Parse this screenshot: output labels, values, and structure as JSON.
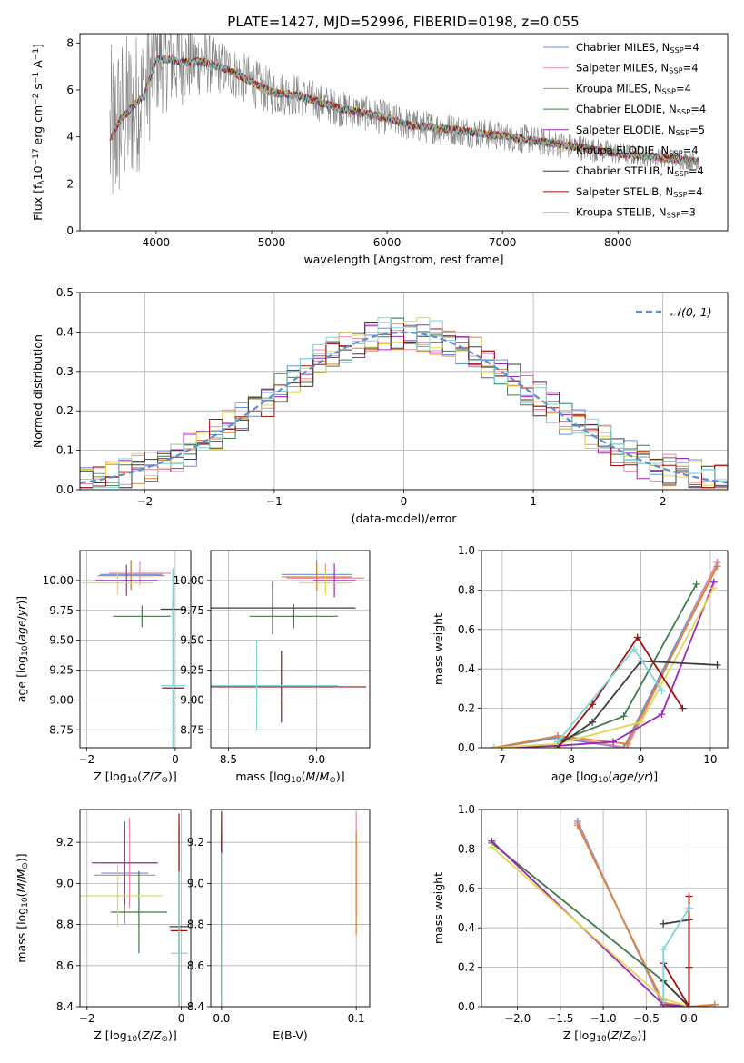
{
  "figure": {
    "title": "PLATE=1427, MJD=52996, FIBERID=0198, z=0.055"
  },
  "colors": {
    "series": [
      "#6a8fd8",
      "#e88aa6",
      "#d9843a",
      "#3f7a4a",
      "#9b28b8",
      "#e2d84e",
      "#3d3d3d",
      "#a01010",
      "#7fd6d8"
    ],
    "data": "#7f7f7f",
    "normal": "#5b8fd0",
    "grid": "#b0b0b0"
  },
  "series_labels": [
    "Chabrier MILES, N<sub>SSP</sub>=4",
    "Salpeter MILES, N<sub>SSP</sub>=4",
    "Kroupa MILES, N<sub>SSP</sub>=4",
    "Chabrier ELODIE, N<sub>SSP</sub>=4",
    "Salpeter ELODIE, N<sub>SSP</sub>=5",
    "Kroupa ELODIE, N<sub>SSP</sub>=4",
    "Chabrier STELIB, N<sub>SSP</sub>=4",
    "Salpeter STELIB, N<sub>SSP</sub>=4",
    "Kroupa STELIB, N<sub>SSP</sub>=3"
  ],
  "chart_data": [
    {
      "type": "line",
      "name": "spectrum",
      "xlabel": "wavelength [Angstrom, rest frame]",
      "ylabel": "Flux [f<sub>λ</sub>10<sup>−17</sup> erg cm<sup>−2</sup> s<sup>−1</sup> A<sup>−1</sup>]",
      "xlim": [
        3340,
        8950
      ],
      "ylim": [
        0,
        8.4
      ],
      "xticks": [
        4000,
        5000,
        6000,
        7000,
        8000
      ],
      "yticks": [
        0,
        2,
        4,
        6,
        8
      ],
      "legend": "top-right",
      "model_continuum": [
        [
          3600,
          3.9
        ],
        [
          3700,
          4.8
        ],
        [
          3800,
          5.3
        ],
        [
          3900,
          5.8
        ],
        [
          4000,
          7.3
        ],
        [
          4100,
          7.3
        ],
        [
          4200,
          7.2
        ],
        [
          4400,
          7.2
        ],
        [
          4600,
          6.9
        ],
        [
          4800,
          6.4
        ],
        [
          5000,
          5.9
        ],
        [
          5200,
          5.8
        ],
        [
          5400,
          5.5
        ],
        [
          5600,
          5.2
        ],
        [
          5800,
          5.0
        ],
        [
          6000,
          4.8
        ],
        [
          6200,
          4.5
        ],
        [
          6400,
          4.4
        ],
        [
          6600,
          4.3
        ],
        [
          6800,
          4.15
        ],
        [
          7000,
          4.05
        ],
        [
          7200,
          3.9
        ],
        [
          7400,
          3.75
        ],
        [
          7600,
          3.6
        ],
        [
          7800,
          3.45
        ],
        [
          8000,
          3.3
        ],
        [
          8200,
          3.2
        ],
        [
          8400,
          3.1
        ],
        [
          8600,
          3.0
        ],
        [
          8700,
          2.95
        ]
      ],
      "data_noise": [
        [
          3600,
          4.0
        ],
        [
          4000,
          2.5
        ],
        [
          4500,
          1.2
        ],
        [
          5500,
          0.8
        ],
        [
          6500,
          0.7
        ],
        [
          7500,
          0.6
        ],
        [
          8200,
          0.45
        ],
        [
          8700,
          0.4
        ]
      ]
    },
    {
      "type": "bar",
      "name": "residuals",
      "xlabel": "(data-model)/error",
      "ylabel": "Normed distribution",
      "xlim": [
        -2.5,
        2.5
      ],
      "ylim": [
        0,
        0.5
      ],
      "xticks": [
        -2,
        -1,
        0,
        1,
        2
      ],
      "yticks": [
        0.0,
        0.1,
        0.2,
        0.3,
        0.4,
        0.5
      ],
      "bin_width": 0.1,
      "normal_label": "𝒩(0, 1)",
      "legend": "top-right"
    },
    {
      "type": "scatter",
      "name": "age_vs_Z",
      "xlabel": "Z [log<sub>10</sub>(<i>Z</i>/<i>Z</i><sub>⊙</sub>)]",
      "ylabel": "age  [log<sub>10</sub>(<i>age</i>/<i>yr</i>)]",
      "xlim": [
        -2.15,
        0.35
      ],
      "ylim": [
        8.6,
        10.25
      ],
      "xticks": [
        -2,
        0
      ],
      "yticks": [
        8.75,
        9.0,
        9.25,
        9.5,
        9.75,
        10.0
      ],
      "points": [
        {
          "s": 0,
          "x": -1.0,
          "y": 10.05,
          "xerr": 0.7,
          "yerr": 0.12
        },
        {
          "s": 1,
          "x": -0.8,
          "y": 10.06,
          "xerr": 0.7,
          "yerr": 0.1
        },
        {
          "s": 2,
          "x": -1.0,
          "y": 10.04,
          "xerr": 0.75,
          "yerr": 0.12
        },
        {
          "s": 3,
          "x": -0.75,
          "y": 9.7,
          "xerr": 0.65,
          "yerr": 0.09
        },
        {
          "s": 4,
          "x": -1.1,
          "y": 10.0,
          "xerr": 0.7,
          "yerr": 0.13
        },
        {
          "s": 5,
          "x": -1.3,
          "y": 9.98,
          "xerr": 0.8,
          "yerr": 0.1
        },
        {
          "s": 6,
          "x": -0.05,
          "y": 9.76,
          "xerr": 0.28,
          "yerr": 0.08
        },
        {
          "s": 7,
          "x": -0.05,
          "y": 9.1,
          "xerr": 0.25,
          "yerr": 1.0
        },
        {
          "s": 8,
          "x": -0.05,
          "y": 9.12,
          "xerr": 0.28,
          "yerr": 0.98
        }
      ]
    },
    {
      "type": "scatter",
      "name": "age_vs_mass",
      "xlabel": "mass [log<sub>10</sub>(<i>M</i>/<i>M</i><sub>⊙</sub>)]",
      "ylabel": "",
      "xlim": [
        8.4,
        9.3
      ],
      "ylim": [
        8.6,
        10.25
      ],
      "xticks": [
        8.5,
        9.0
      ],
      "yticks": [
        8.75,
        9.0,
        9.25,
        9.5,
        9.75,
        10.0
      ],
      "points": [
        {
          "s": 0,
          "x": 9.0,
          "y": 10.05,
          "xerr": 0.2,
          "yerr": 0.12
        },
        {
          "s": 1,
          "x": 9.05,
          "y": 10.02,
          "xerr": 0.22,
          "yerr": 0.12
        },
        {
          "s": 2,
          "x": 9.0,
          "y": 10.03,
          "xerr": 0.2,
          "yerr": 0.12
        },
        {
          "s": 3,
          "x": 8.87,
          "y": 9.7,
          "xerr": 0.25,
          "yerr": 0.1
        },
        {
          "s": 4,
          "x": 9.1,
          "y": 10.0,
          "xerr": 0.12,
          "yerr": 0.14
        },
        {
          "s": 5,
          "x": 9.05,
          "y": 9.98,
          "xerr": 0.15,
          "yerr": 0.1
        },
        {
          "s": 6,
          "x": 8.75,
          "y": 9.77,
          "xerr": 0.47,
          "yerr": 0.22
        },
        {
          "s": 7,
          "x": 8.8,
          "y": 9.11,
          "xerr": 0.48,
          "yerr": 0.3
        },
        {
          "s": 8,
          "x": 8.66,
          "y": 9.12,
          "xerr": 0.46,
          "yerr": 0.38
        }
      ]
    },
    {
      "type": "line",
      "name": "massweight_vs_age",
      "xlabel": "age  [log<sub>10</sub>(<i>age</i>/<i>yr</i>)]",
      "ylabel": "mass weight",
      "xlim": [
        6.7,
        10.25
      ],
      "ylim": [
        0,
        1.0
      ],
      "xticks": [
        7,
        8,
        9,
        10
      ],
      "yticks": [
        0.0,
        0.2,
        0.4,
        0.6,
        0.8,
        1.0
      ],
      "series": [
        {
          "s": 0,
          "points": [
            [
              6.88,
              0.0
            ],
            [
              7.8,
              0.05
            ],
            [
              8.75,
              0.0
            ],
            [
              10.1,
              0.94
            ]
          ]
        },
        {
          "s": 1,
          "points": [
            [
              6.88,
              0.0
            ],
            [
              7.8,
              0.06
            ],
            [
              8.8,
              0.0
            ],
            [
              10.1,
              0.94
            ]
          ]
        },
        {
          "s": 2,
          "points": [
            [
              6.88,
              0.0
            ],
            [
              7.8,
              0.06
            ],
            [
              8.8,
              0.02
            ],
            [
              10.1,
              0.92
            ]
          ]
        },
        {
          "s": 3,
          "points": [
            [
              7.8,
              0.03
            ],
            [
              8.75,
              0.16
            ],
            [
              9.8,
              0.83
            ]
          ]
        },
        {
          "s": 4,
          "points": [
            [
              6.88,
              0.0
            ],
            [
              7.8,
              0.01
            ],
            [
              8.6,
              0.03
            ],
            [
              9.3,
              0.17
            ],
            [
              10.05,
              0.84
            ]
          ]
        },
        {
          "s": 5,
          "points": [
            [
              6.88,
              0.0
            ],
            [
              7.8,
              0.02
            ],
            [
              9.0,
              0.13
            ],
            [
              10.05,
              0.81
            ]
          ]
        },
        {
          "s": 6,
          "points": [
            [
              7.8,
              0.01
            ],
            [
              8.3,
              0.13
            ],
            [
              9.0,
              0.44
            ],
            [
              10.1,
              0.42
            ]
          ]
        },
        {
          "s": 7,
          "points": [
            [
              7.8,
              0.0
            ],
            [
              8.3,
              0.22
            ],
            [
              8.95,
              0.56
            ],
            [
              9.6,
              0.2
            ]
          ]
        },
        {
          "s": 8,
          "points": [
            [
              7.8,
              0.03
            ],
            [
              8.9,
              0.5
            ],
            [
              9.3,
              0.29
            ]
          ]
        }
      ]
    },
    {
      "type": "scatter",
      "name": "mass_vs_Z",
      "xlabel": "Z [log<sub>10</sub>(<i>Z</i>/<i>Z</i><sub>⊙</sub>)]",
      "ylabel": "mass [log<sub>10</sub>(<i>M</i>/<i>M</i><sub>⊙</sub>)]",
      "xlim": [
        -2.15,
        0.2
      ],
      "ylim": [
        8.4,
        9.36
      ],
      "xticks": [
        -2,
        0
      ],
      "yticks": [
        8.4,
        8.6,
        8.8,
        9.0,
        9.2
      ],
      "points": [
        {
          "s": 0,
          "x": -1.2,
          "y": 9.05,
          "xerr": 0.5,
          "yerr": 0.25
        },
        {
          "s": 1,
          "x": -1.1,
          "y": 9.1,
          "xerr": 0.6,
          "yerr": 0.22
        },
        {
          "s": 2,
          "x": -1.2,
          "y": 9.04,
          "xerr": 0.65,
          "yerr": 0.2
        },
        {
          "s": 3,
          "x": -0.9,
          "y": 8.86,
          "xerr": 0.6,
          "yerr": 0.2
        },
        {
          "s": 4,
          "x": -1.2,
          "y": 9.1,
          "xerr": 0.7,
          "yerr": 0.2
        },
        {
          "s": 5,
          "x": -1.35,
          "y": 8.94,
          "xerr": 0.95,
          "yerr": 0.15
        },
        {
          "s": 6,
          "x": -0.05,
          "y": 8.79,
          "xerr": 0.2,
          "yerr": 0.5
        },
        {
          "s": 7,
          "x": -0.05,
          "y": 8.77,
          "xerr": 0.18,
          "yerr": 0.57
        },
        {
          "s": 8,
          "x": -0.05,
          "y": 8.66,
          "xerr": 0.18,
          "yerr": 0.4
        }
      ]
    },
    {
      "type": "scatter",
      "name": "mass_vs_ebv",
      "xlabel": "E(B-V)",
      "ylabel": "",
      "xlim": [
        -0.008,
        0.11
      ],
      "ylim": [
        8.4,
        9.36
      ],
      "xticks": [
        0.0,
        0.1
      ],
      "yticks": [
        8.4,
        8.6,
        8.8,
        9.0,
        9.2
      ],
      "points": [
        {
          "s": 0,
          "x": 0.0,
          "y": 8.9,
          "xerr": 0,
          "yerr": 0.35
        },
        {
          "s": 1,
          "x": 0.1,
          "y": 9.1,
          "xerr": 0,
          "yerr": 0.25
        },
        {
          "s": 2,
          "x": 0.1,
          "y": 9.0,
          "xerr": 0,
          "yerr": 0.25
        },
        {
          "s": 3,
          "x": 0.0,
          "y": 8.85,
          "xerr": 0,
          "yerr": 0.4
        },
        {
          "s": 4,
          "x": 0.0,
          "y": 9.0,
          "xerr": 0,
          "yerr": 0.3
        },
        {
          "s": 5,
          "x": 0.0,
          "y": 8.9,
          "xerr": 0,
          "yerr": 0.4
        },
        {
          "s": 6,
          "x": 0.0,
          "y": 8.8,
          "xerr": 0,
          "yerr": 0.45
        },
        {
          "s": 7,
          "x": 0.0,
          "y": 8.85,
          "xerr": 0,
          "yerr": 0.5
        },
        {
          "s": 8,
          "x": 0.0,
          "y": 8.75,
          "xerr": 0,
          "yerr": 0.4
        }
      ]
    },
    {
      "type": "line",
      "name": "massweight_vs_Z",
      "xlabel": "Z [log<sub>10</sub>(<i>Z</i>/<i>Z</i><sub>⊙</sub>)]",
      "ylabel": "mass weight",
      "xlim": [
        -2.42,
        0.45
      ],
      "ylim": [
        0,
        1.0
      ],
      "xticks": [
        -2.0,
        -1.5,
        -1.0,
        -0.5,
        0.0
      ],
      "yticks": [
        0.0,
        0.2,
        0.4,
        0.6,
        0.8,
        1.0
      ],
      "series": [
        {
          "s": 0,
          "points": [
            [
              -1.3,
              0.94
            ],
            [
              -0.3,
              0.0
            ],
            [
              0.0,
              0.0
            ],
            [
              0.3,
              0.01
            ]
          ]
        },
        {
          "s": 1,
          "points": [
            [
              -1.3,
              0.93
            ],
            [
              -0.3,
              0.01
            ],
            [
              0.0,
              0.0
            ],
            [
              0.3,
              0.01
            ]
          ]
        },
        {
          "s": 2,
          "points": [
            [
              -1.3,
              0.92
            ],
            [
              -0.3,
              0.02
            ],
            [
              0.0,
              0.0
            ],
            [
              0.3,
              0.01
            ]
          ]
        },
        {
          "s": 3,
          "points": [
            [
              -2.3,
              0.83
            ],
            [
              -0.3,
              0.13
            ],
            [
              0.0,
              0.0
            ]
          ]
        },
        {
          "s": 4,
          "points": [
            [
              -2.3,
              0.84
            ],
            [
              -0.3,
              0.01
            ],
            [
              0.0,
              0.0
            ]
          ]
        },
        {
          "s": 5,
          "points": [
            [
              -2.3,
              0.81
            ],
            [
              -0.3,
              0.04
            ],
            [
              0.0,
              0.0
            ]
          ]
        },
        {
          "s": 6,
          "points": [
            [
              -0.3,
              0.42
            ],
            [
              0.0,
              0.44
            ],
            [
              0.0,
              0.0
            ],
            [
              -0.3,
              0.13
            ]
          ]
        },
        {
          "s": 7,
          "points": [
            [
              0.0,
              0.56
            ],
            [
              0.0,
              0.2
            ],
            [
              0.0,
              0.0
            ],
            [
              -0.3,
              0.22
            ]
          ]
        },
        {
          "s": 8,
          "points": [
            [
              0.0,
              0.5
            ],
            [
              -0.3,
              0.29
            ],
            [
              -0.3,
              0.03
            ]
          ]
        }
      ]
    }
  ]
}
